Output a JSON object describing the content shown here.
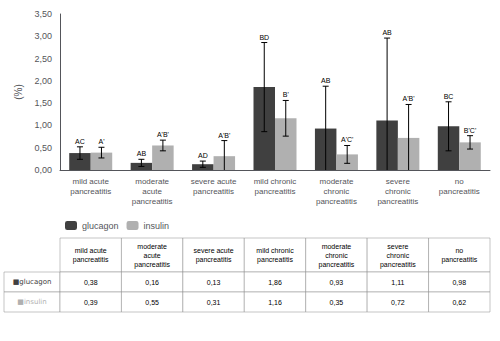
{
  "chart_data": {
    "type": "bar",
    "categories": [
      "mild acute\npancreatitis",
      "moderate\nacute\npancreatitis",
      "severe acute\npancreatitis",
      "mild chronic\npancreatitis",
      "moderate\nchronic\npancreatitis",
      "severe\nchronic\npancreatitis",
      "no\npancreatitis"
    ],
    "series": [
      {
        "name": "glucagon",
        "color": "#404040",
        "values": [
          0.38,
          0.16,
          0.13,
          1.86,
          0.93,
          1.11,
          0.98
        ],
        "errors": [
          0.14,
          0.08,
          0.07,
          1.0,
          0.95,
          1.85,
          0.55
        ],
        "annotations": [
          "AC",
          "AB",
          "AD",
          "BD",
          "AB",
          "AB",
          "BC"
        ]
      },
      {
        "name": "insulin",
        "color": "#b0b0b0",
        "values": [
          0.39,
          0.55,
          0.31,
          1.16,
          0.35,
          0.72,
          0.62
        ],
        "errors": [
          0.12,
          0.12,
          0.35,
          0.4,
          0.2,
          0.75,
          0.15
        ],
        "annotations": [
          "A'",
          "A'B'",
          "A'B'",
          "B'",
          "A'C'",
          "A'B'",
          "B'C'"
        ]
      }
    ],
    "ylabel": "(%)",
    "ylim": [
      0,
      3.5
    ],
    "yticks": [
      {
        "value": 0,
        "label": "0,00"
      },
      {
        "value": 0.5,
        "label": "0,50"
      },
      {
        "value": 1,
        "label": "1,00"
      },
      {
        "value": 1.5,
        "label": "1,50"
      },
      {
        "value": 2,
        "label": "2,00"
      },
      {
        "value": 2.5,
        "label": "2,50"
      },
      {
        "value": 3,
        "label": "3,00"
      },
      {
        "value": 3.5,
        "label": "3,50"
      }
    ],
    "grid": false,
    "legend": "bottom left",
    "table": {
      "row_labels": [
        "■glucagon",
        "■insulin"
      ],
      "cells": [
        [
          "0,38",
          "0,16",
          "0,13",
          "1,86",
          "0,93",
          "1,11",
          "0,98"
        ],
        [
          "0,39",
          "0,55",
          "0,31",
          "1,16",
          "0,35",
          "0,72",
          "0,62"
        ]
      ]
    }
  }
}
